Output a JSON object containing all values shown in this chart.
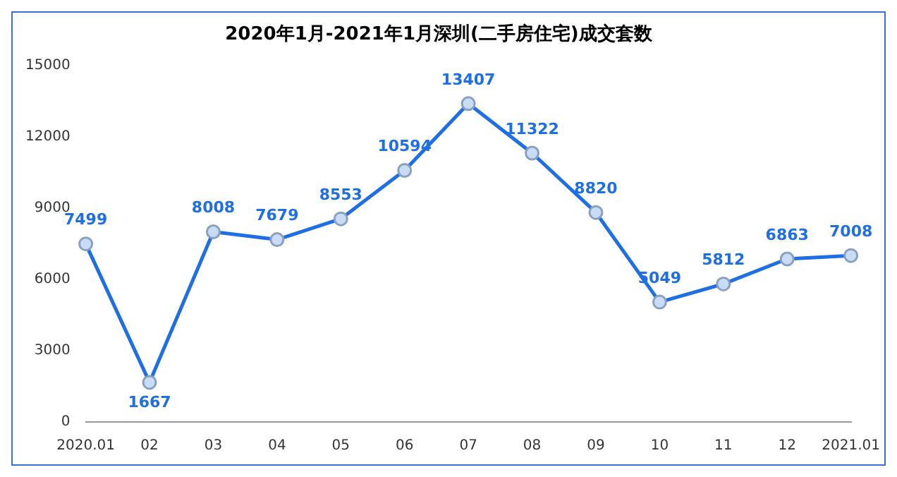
{
  "chart_data": {
    "type": "line",
    "title": "2020年1月-2021年1月深圳(二手房住宅)成交套数",
    "categories": [
      "2020.01",
      "02",
      "03",
      "04",
      "05",
      "06",
      "07",
      "08",
      "09",
      "10",
      "11",
      "12",
      "2021.01"
    ],
    "values": [
      7499,
      1667,
      8008,
      7679,
      8553,
      10594,
      13407,
      11322,
      8820,
      5049,
      5812,
      6863,
      7008
    ],
    "color": "#1e6ee6",
    "ylim": [
      0,
      15000
    ],
    "yticks": [
      0,
      3000,
      6000,
      9000,
      12000,
      15000
    ],
    "grid": false,
    "legend": false,
    "marker": "circle",
    "line_style": "solid",
    "data_labels": true
  }
}
